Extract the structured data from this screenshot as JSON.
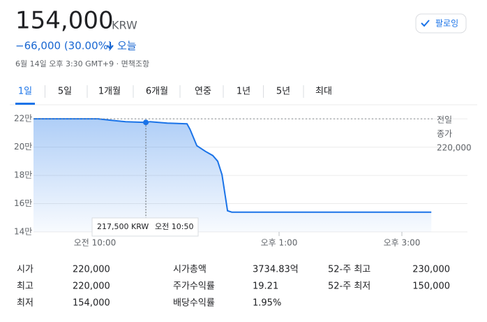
{
  "header": {
    "price": "154,000",
    "currency": "KRW",
    "change": "−66,000 (30.00%)",
    "period": "오늘",
    "timestamp": "6월 14일 오후 3:30 GMT+9 · 면책조항",
    "follow": "팔로잉"
  },
  "tabs": {
    "items": [
      "1일",
      "5일",
      "1개월",
      "6개월",
      "연중",
      "1년",
      "5년",
      "최대"
    ],
    "active": 0
  },
  "chart_data": {
    "type": "area",
    "color": "#1a73e8",
    "x": [
      9.0,
      10.05,
      10.27,
      10.5,
      10.83,
      10.9,
      11.18,
      11.5,
      11.55,
      11.66,
      11.8,
      11.92,
      12.0,
      12.07,
      12.16,
      12.23,
      15.48
    ],
    "values": [
      220000,
      220000,
      219000,
      218000,
      217500,
      218000,
      217000,
      216500,
      212500,
      201000,
      197000,
      194000,
      190000,
      180500,
      155000,
      154000,
      154000
    ],
    "xlim": [
      9,
      15.5
    ],
    "xticks": [
      {
        "value": 10,
        "label": "오전 10:00"
      },
      {
        "value": 13,
        "label": "오후 1:00"
      },
      {
        "value": 15,
        "label": "오후 3:00"
      }
    ],
    "ylim": [
      140000,
      226000
    ],
    "yticks": [
      {
        "value": 220000,
        "label": "22만"
      },
      {
        "value": 200000,
        "label": "20만"
      },
      {
        "value": 180000,
        "label": "18만"
      },
      {
        "value": 160000,
        "label": "16만"
      },
      {
        "value": 140000,
        "label": "14만"
      }
    ],
    "grid": true,
    "prev_close": {
      "value": 220000,
      "label_lines": [
        "전일",
        "종가"
      ],
      "value_label": "220,000"
    },
    "tooltip": {
      "x": 10.83,
      "value": 217500,
      "value_label": "217,500 KRW",
      "time_label": "오전 10:50"
    }
  },
  "stats": {
    "columns": [
      [
        [
          "시가",
          "220,000"
        ],
        [
          "최고",
          "220,000"
        ],
        [
          "최저",
          "154,000"
        ]
      ],
      [
        [
          "시가총액",
          "3734.83억"
        ],
        [
          "주가수익률",
          "19.21"
        ],
        [
          "배당수익률",
          "1.95%"
        ]
      ],
      [
        [
          "52-주 최고",
          "230,000"
        ],
        [
          "52-주 최저",
          "150,000"
        ]
      ]
    ]
  }
}
